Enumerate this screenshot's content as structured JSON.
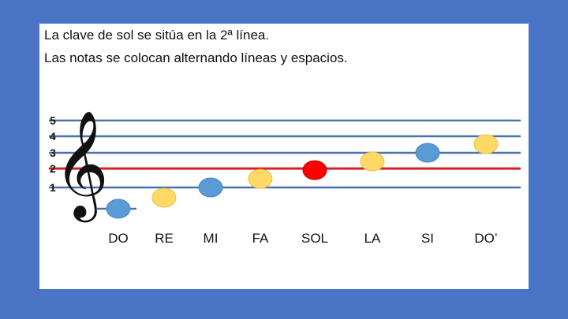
{
  "text": {
    "line1": "La clave de sol se sitúa en la 2ª línea.",
    "line2": "Las notas se colocan alternando líneas y espacios."
  },
  "staff": {
    "line_numbers": [
      "5",
      "4",
      "3",
      "2",
      "1"
    ],
    "highlighted_line": "2",
    "colors": {
      "line": "#4a72b0",
      "highlight_line": "#d62020",
      "blue_note": "#5b9bd5",
      "yellow_note": "#ffd966",
      "red_note": "#ff0000",
      "clef": "#111111"
    }
  },
  "notes": [
    {
      "name": "DO",
      "color": "blue",
      "ledger": true
    },
    {
      "name": "RE",
      "color": "yellow"
    },
    {
      "name": "MI",
      "color": "blue"
    },
    {
      "name": "FA",
      "color": "yellow"
    },
    {
      "name": "SOL",
      "color": "red"
    },
    {
      "name": "LA",
      "color": "yellow"
    },
    {
      "name": "SI",
      "color": "blue"
    },
    {
      "name": "DO’",
      "color": "yellow"
    }
  ],
  "icons": {
    "clef": "treble-clef-icon"
  }
}
